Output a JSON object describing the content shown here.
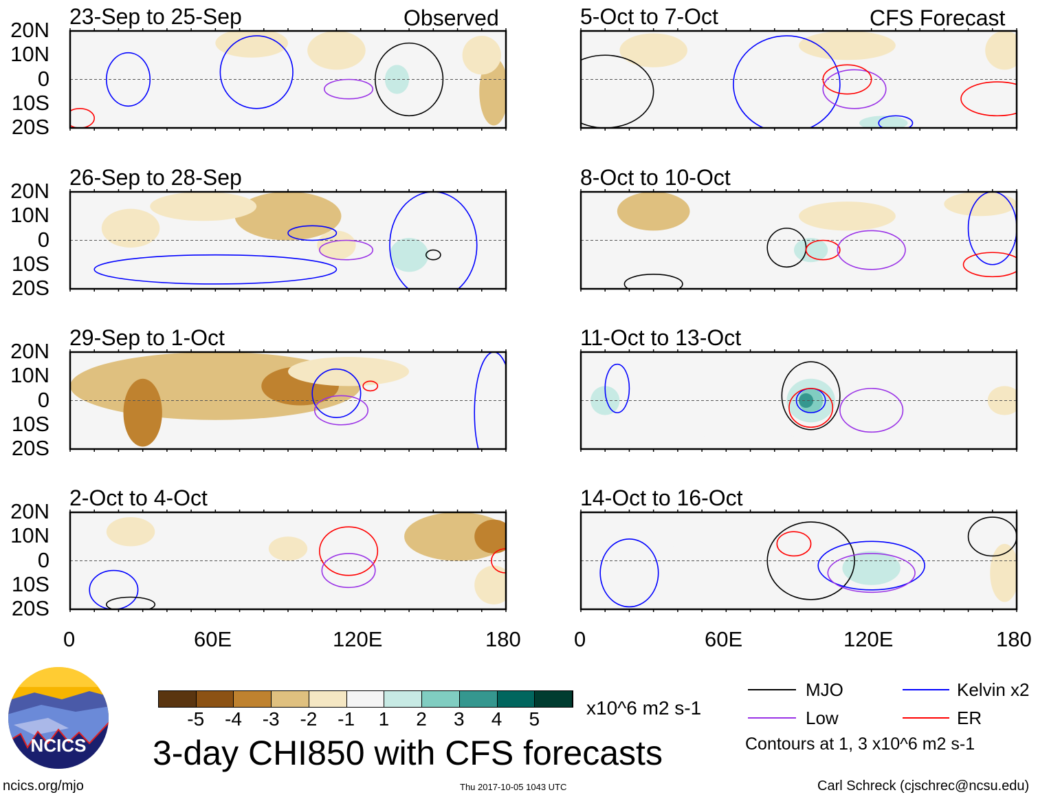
{
  "colors": {
    "levels": [
      -5,
      -4,
      -3,
      -2,
      -1,
      1,
      2,
      3,
      4,
      5
    ],
    "fills": [
      "#5a3510",
      "#8c5214",
      "#bf822f",
      "#dfc07f",
      "#f5e7c3",
      "#f5f5f5",
      "#c7eae4",
      "#80cdc1",
      "#35978f",
      "#01665e",
      "#003c30"
    ],
    "MJO": "#000000",
    "Kelvin": "#0000ff",
    "Low": "#9a32e6",
    "ER": "#ff0000"
  },
  "lat_labels": [
    "20N",
    "10N",
    "0",
    "10S",
    "20S"
  ],
  "lon_labels": [
    "0",
    "60E",
    "120E",
    "180"
  ],
  "panels": [
    {
      "title": "23-Sep to 25-Sep",
      "tag": "Observed",
      "shade": [
        [
          75,
          15,
          15,
          6,
          -1
        ],
        [
          110,
          12,
          12,
          8,
          -1
        ],
        [
          175,
          -5,
          6,
          14,
          -2
        ],
        [
          170,
          10,
          8,
          8,
          -1
        ],
        [
          135,
          2,
          8,
          9,
          1
        ],
        [
          135,
          0,
          5,
          6,
          2
        ]
      ],
      "contours": [
        [
          "Kelvin",
          24,
          0,
          9,
          11
        ],
        [
          "Kelvin",
          77,
          3,
          15,
          15
        ],
        [
          "Low",
          115,
          -4,
          10,
          4
        ],
        [
          "MJO",
          140,
          0,
          14,
          15
        ],
        [
          "ER",
          4,
          -16,
          6,
          4
        ]
      ]
    },
    {
      "title": "26-Sep to 28-Sep",
      "tag": "",
      "shade": [
        [
          90,
          10,
          22,
          10,
          -2
        ],
        [
          55,
          14,
          22,
          6,
          -1
        ],
        [
          25,
          5,
          12,
          8,
          -1
        ],
        [
          140,
          -5,
          15,
          12,
          1
        ],
        [
          140,
          -6,
          8,
          7,
          2
        ],
        [
          110,
          -2,
          8,
          6,
          -1
        ]
      ],
      "contours": [
        [
          "Kelvin",
          150,
          -2,
          18,
          22
        ],
        [
          "Kelvin",
          100,
          3,
          10,
          3
        ],
        [
          "Low",
          114,
          -4,
          11,
          4
        ],
        [
          "MJO",
          150,
          -6,
          3,
          2
        ],
        [
          "Kelvin",
          60,
          -12,
          50,
          6
        ]
      ]
    },
    {
      "title": "29-Sep to 1-Oct",
      "tag": "",
      "shade": [
        [
          60,
          6,
          60,
          14,
          -2
        ],
        [
          95,
          6,
          16,
          8,
          -3
        ],
        [
          30,
          -5,
          8,
          14,
          -3
        ],
        [
          115,
          12,
          25,
          6,
          -1
        ]
      ],
      "contours": [
        [
          "Kelvin",
          110,
          3,
          10,
          10
        ],
        [
          "Low",
          112,
          -4,
          11,
          6
        ],
        [
          "ER",
          124,
          6,
          3,
          2
        ],
        [
          "Kelvin",
          175,
          -5,
          8,
          25
        ]
      ]
    },
    {
      "title": "2-Oct to 4-Oct",
      "tag": "",
      "shade": [
        [
          160,
          10,
          22,
          10,
          -2
        ],
        [
          175,
          10,
          8,
          7,
          -3
        ],
        [
          25,
          12,
          10,
          6,
          -1
        ],
        [
          175,
          -10,
          8,
          8,
          -1
        ],
        [
          90,
          5,
          8,
          5,
          -1
        ]
      ],
      "contours": [
        [
          "ER",
          115,
          4,
          12,
          10
        ],
        [
          "Low",
          115,
          -4,
          11,
          7
        ],
        [
          "Kelvin",
          18,
          -12,
          10,
          8
        ],
        [
          "MJO",
          25,
          -18,
          10,
          3
        ],
        [
          "ER",
          180,
          0,
          6,
          5
        ]
      ]
    },
    {
      "title": "5-Oct to 7-Oct",
      "tag": "CFS Forecast",
      "shade": [
        [
          30,
          12,
          14,
          7,
          -1
        ],
        [
          110,
          14,
          20,
          6,
          -1
        ],
        [
          175,
          12,
          8,
          8,
          -1
        ],
        [
          130,
          -15,
          20,
          6,
          1
        ],
        [
          125,
          -18,
          10,
          3,
          2
        ],
        [
          65,
          -6,
          10,
          3,
          1
        ]
      ],
      "contours": [
        [
          "Kelvin",
          85,
          -2,
          22,
          20
        ],
        [
          "Low",
          113,
          -4,
          13,
          8
        ],
        [
          "ER",
          110,
          0,
          10,
          6
        ],
        [
          "ER",
          172,
          -8,
          15,
          7
        ],
        [
          "MJO",
          10,
          -5,
          20,
          15
        ],
        [
          "Kelvin",
          130,
          -18,
          7,
          3
        ]
      ]
    },
    {
      "title": "8-Oct to 10-Oct",
      "tag": "",
      "shade": [
        [
          30,
          12,
          15,
          8,
          -2
        ],
        [
          110,
          10,
          20,
          6,
          -1
        ],
        [
          165,
          15,
          15,
          5,
          -1
        ],
        [
          95,
          -4,
          12,
          7,
          1
        ],
        [
          95,
          -4,
          7,
          5,
          2
        ],
        [
          130,
          -10,
          25,
          6,
          1
        ]
      ],
      "contours": [
        [
          "MJO",
          85,
          -3,
          8,
          8
        ],
        [
          "ER",
          100,
          -4,
          7,
          4
        ],
        [
          "Low",
          120,
          -4,
          14,
          8
        ],
        [
          "Kelvin",
          170,
          5,
          10,
          15
        ],
        [
          "ER",
          170,
          -10,
          12,
          5
        ],
        [
          "MJO",
          30,
          -18,
          12,
          4
        ]
      ]
    },
    {
      "title": "11-Oct to 13-Oct",
      "tag": "",
      "shade": [
        [
          95,
          -2,
          18,
          14,
          1
        ],
        [
          95,
          0,
          10,
          9,
          2
        ],
        [
          95,
          0,
          5,
          5,
          3
        ],
        [
          93,
          0,
          3,
          3,
          4
        ],
        [
          40,
          -8,
          15,
          10,
          1
        ],
        [
          175,
          0,
          7,
          6,
          -1
        ],
        [
          10,
          0,
          6,
          6,
          2
        ]
      ],
      "contours": [
        [
          "MJO",
          95,
          2,
          12,
          14
        ],
        [
          "Kelvin",
          95,
          0,
          6,
          5
        ],
        [
          "ER",
          95,
          -3,
          9,
          8
        ],
        [
          "Low",
          120,
          -4,
          13,
          9
        ],
        [
          "Kelvin",
          15,
          5,
          5,
          10
        ]
      ]
    },
    {
      "title": "14-Oct to 16-Oct",
      "tag": "",
      "shade": [
        [
          110,
          0,
          30,
          14,
          1
        ],
        [
          120,
          -3,
          12,
          7,
          2
        ],
        [
          40,
          -2,
          12,
          8,
          1
        ],
        [
          175,
          -5,
          6,
          12,
          -1
        ]
      ],
      "contours": [
        [
          "MJO",
          95,
          0,
          18,
          16
        ],
        [
          "Kelvin",
          120,
          -2,
          22,
          10
        ],
        [
          "Low",
          120,
          -5,
          18,
          8
        ],
        [
          "ER",
          88,
          7,
          7,
          5
        ],
        [
          "MJO",
          170,
          10,
          10,
          8
        ],
        [
          "Kelvin",
          20,
          -5,
          12,
          14
        ]
      ]
    }
  ],
  "colorbar": {
    "ticks": [
      "-5",
      "-4",
      "-3",
      "-2",
      "-1",
      "1",
      "2",
      "3",
      "4",
      "5"
    ],
    "units": "x10^6 m2 s-1"
  },
  "title": "3-day CHI850 with CFS forecasts",
  "legend": {
    "mjo": "MJO",
    "kelvin": "Kelvin x2",
    "low": "Low",
    "er": "ER",
    "note": "Contours at 1, 3 x10^6 m2 s-1"
  },
  "logo": {
    "text": "NCICS"
  },
  "footer": {
    "url": "ncics.org/mjo",
    "timestamp": "Thu 2017-10-05 1043 UTC",
    "author": "Carl Schreck (cjschrec@ncsu.edu)"
  }
}
